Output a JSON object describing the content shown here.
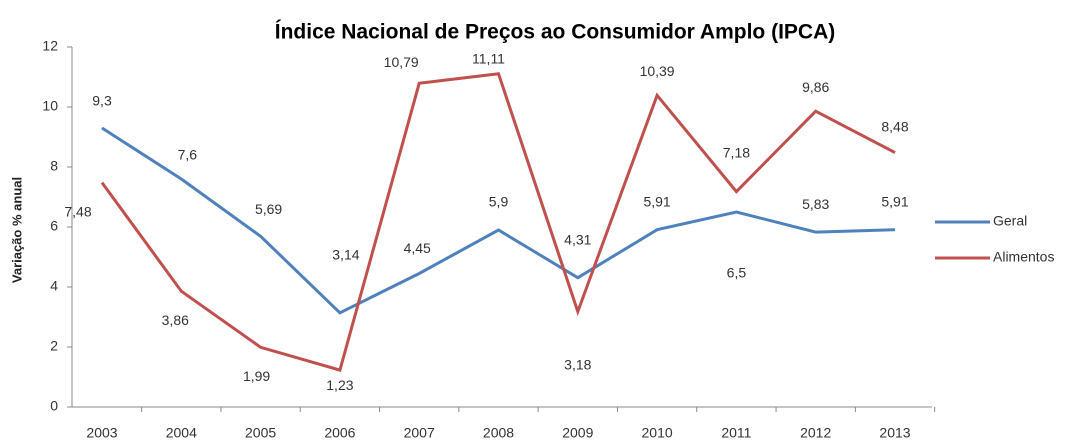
{
  "chart_data": {
    "type": "line",
    "title": "Índice Nacional de Preços ao Consumidor Amplo (IPCA)",
    "y_label": "Variação % anual",
    "categories": [
      "2003",
      "2004",
      "2005",
      "2006",
      "2007",
      "2008",
      "2009",
      "2010",
      "2011",
      "2012",
      "2013"
    ],
    "series": [
      {
        "name": "Geral",
        "color": "#4f81bd",
        "values": [
          9.3,
          7.6,
          5.69,
          3.14,
          4.45,
          5.9,
          4.31,
          5.91,
          6.5,
          5.83,
          5.91
        ],
        "value_labels": [
          "9,3",
          "7,6",
          "5,69",
          "3,14",
          "4,45",
          "5,9",
          "4,31",
          "5,91",
          "6,5",
          "5,83",
          "5,91"
        ]
      },
      {
        "name": "Alimentos",
        "color": "#c0504d",
        "values": [
          7.48,
          3.86,
          1.99,
          1.23,
          10.79,
          11.11,
          3.18,
          10.39,
          7.18,
          9.86,
          8.48
        ],
        "value_labels": [
          "7,48",
          "3,86",
          "1,99",
          "1,23",
          "10,79",
          "11,11",
          "3,18",
          "10,39",
          "7,18",
          "9,86",
          "8,48"
        ]
      }
    ],
    "ylim": [
      0,
      12
    ],
    "yticks": [
      0,
      2,
      4,
      6,
      8,
      10,
      12
    ],
    "grid": false,
    "legend": "right"
  }
}
